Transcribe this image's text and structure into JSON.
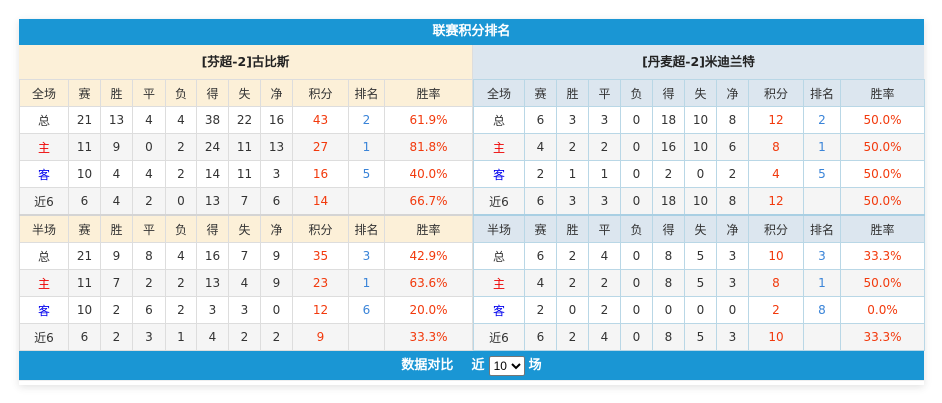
{
  "title": "联赛积分排名",
  "columns_full": [
    "全场",
    "赛",
    "胜",
    "平",
    "负",
    "得",
    "失",
    "净",
    "积分",
    "排名",
    "胜率"
  ],
  "columns_half": [
    "半场",
    "赛",
    "胜",
    "平",
    "负",
    "得",
    "失",
    "净",
    "积分",
    "排名",
    "胜率"
  ],
  "teams": [
    {
      "name": "[芬超-2]古比斯",
      "full": [
        [
          "总",
          "21",
          "13",
          "4",
          "4",
          "38",
          "22",
          "16",
          "43",
          "2",
          "61.9%"
        ],
        [
          "主",
          "11",
          "9",
          "0",
          "2",
          "24",
          "11",
          "13",
          "27",
          "1",
          "81.8%"
        ],
        [
          "客",
          "10",
          "4",
          "4",
          "2",
          "14",
          "11",
          "3",
          "16",
          "5",
          "40.0%"
        ],
        [
          "近6",
          "6",
          "4",
          "2",
          "0",
          "13",
          "7",
          "6",
          "14",
          "",
          "66.7%"
        ]
      ],
      "half": [
        [
          "总",
          "21",
          "9",
          "8",
          "4",
          "16",
          "7",
          "9",
          "35",
          "3",
          "42.9%"
        ],
        [
          "主",
          "11",
          "7",
          "2",
          "2",
          "13",
          "4",
          "9",
          "23",
          "1",
          "63.6%"
        ],
        [
          "客",
          "10",
          "2",
          "6",
          "2",
          "3",
          "3",
          "0",
          "12",
          "6",
          "20.0%"
        ],
        [
          "近6",
          "6",
          "2",
          "3",
          "1",
          "4",
          "2",
          "2",
          "9",
          "",
          "33.3%"
        ]
      ]
    },
    {
      "name": "[丹麦超-2]米迪兰特",
      "full": [
        [
          "总",
          "6",
          "3",
          "3",
          "0",
          "18",
          "10",
          "8",
          "12",
          "2",
          "50.0%"
        ],
        [
          "主",
          "4",
          "2",
          "2",
          "0",
          "16",
          "10",
          "6",
          "8",
          "1",
          "50.0%"
        ],
        [
          "客",
          "2",
          "1",
          "1",
          "0",
          "2",
          "0",
          "2",
          "4",
          "5",
          "50.0%"
        ],
        [
          "近6",
          "6",
          "3",
          "3",
          "0",
          "18",
          "10",
          "8",
          "12",
          "",
          "50.0%"
        ]
      ],
      "half": [
        [
          "总",
          "6",
          "2",
          "4",
          "0",
          "8",
          "5",
          "3",
          "10",
          "3",
          "33.3%"
        ],
        [
          "主",
          "4",
          "2",
          "2",
          "0",
          "8",
          "5",
          "3",
          "8",
          "1",
          "50.0%"
        ],
        [
          "客",
          "2",
          "0",
          "2",
          "0",
          "0",
          "0",
          "0",
          "2",
          "8",
          "0.0%"
        ],
        [
          "近6",
          "6",
          "2",
          "4",
          "0",
          "8",
          "5",
          "3",
          "10",
          "",
          "33.3%"
        ]
      ]
    }
  ],
  "footer": {
    "label": "数据对比",
    "prefix": "近",
    "selected": "10",
    "suffix": "场"
  }
}
